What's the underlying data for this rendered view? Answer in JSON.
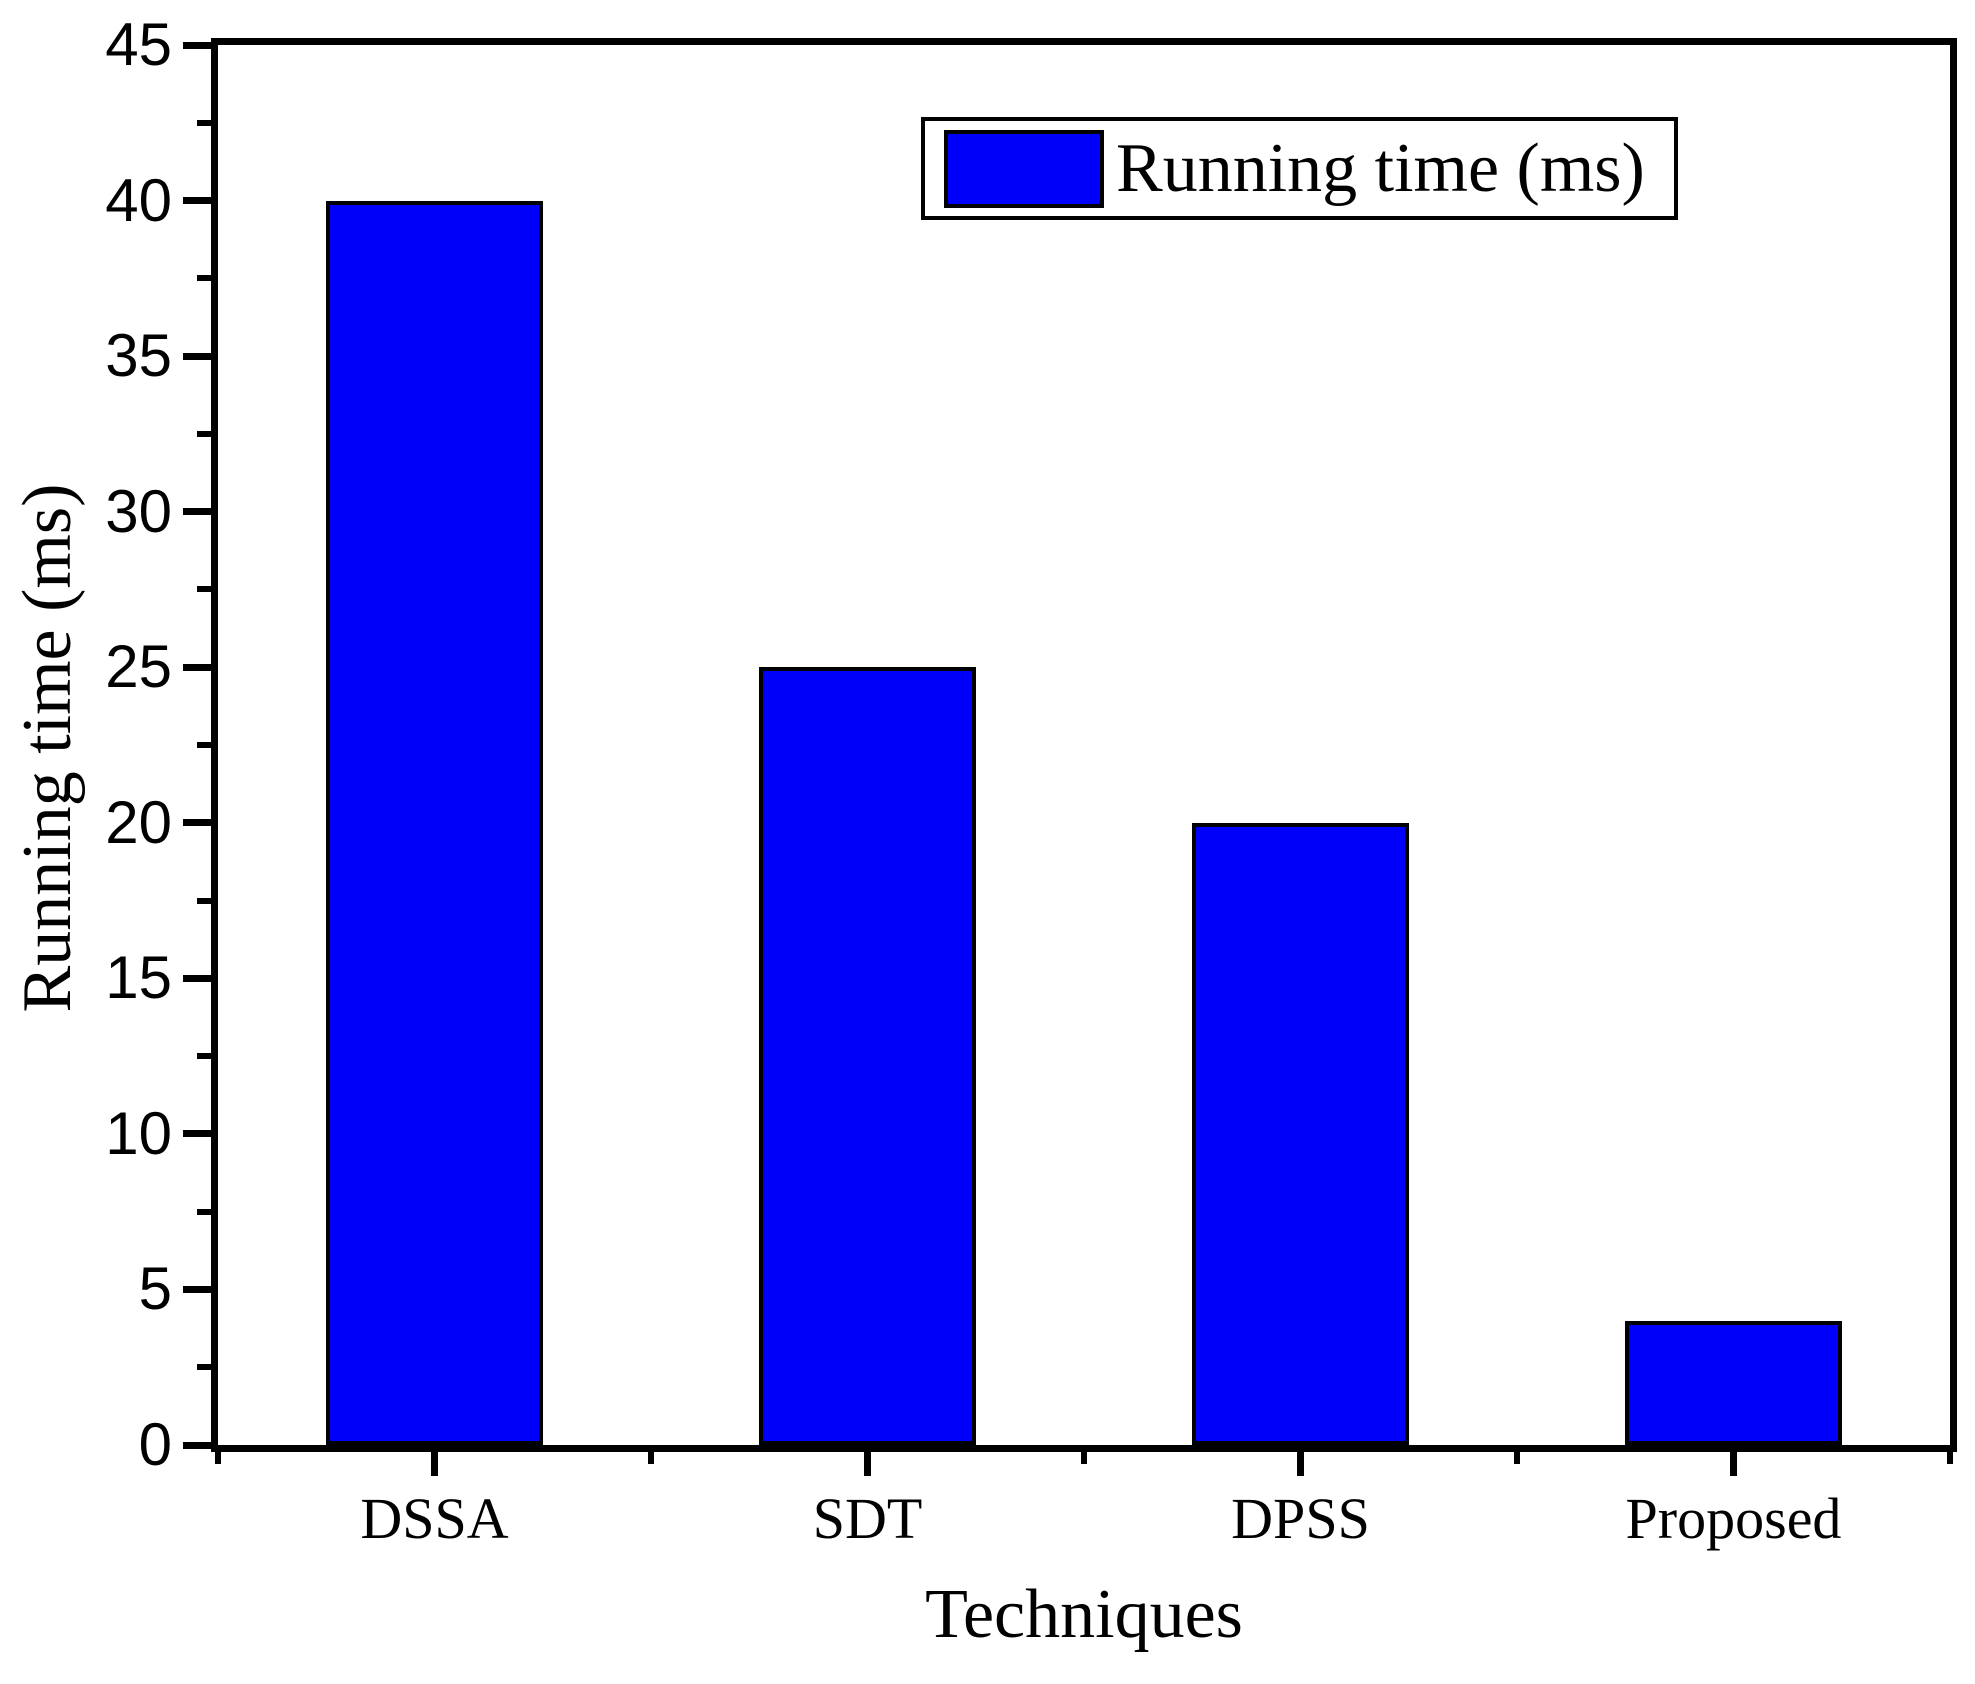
{
  "chart_data": {
    "type": "bar",
    "title": "",
    "categories": [
      "DSSA",
      "SDT",
      "DPSS",
      "Proposed"
    ],
    "values": [
      40,
      25,
      20,
      4
    ],
    "series": [
      {
        "name": "Running time (ms)",
        "values": [
          40,
          25,
          20,
          4
        ]
      }
    ],
    "xlabel": "Techniques",
    "ylabel": "Running time (ms)",
    "ylim": [
      0,
      45
    ],
    "y_major_step": 5,
    "y_minor_step": 2.5,
    "y_tick_labels": [
      "0",
      "5",
      "10",
      "15",
      "20",
      "25",
      "30",
      "35",
      "40",
      "45"
    ],
    "grid": false,
    "legend": {
      "label": "Running time (ms)",
      "position": "top-right"
    },
    "colors": {
      "bar_fill": "#0000fa",
      "bar_border": "#000000",
      "axis": "#000000",
      "background": "#ffffff",
      "text": "#000000"
    },
    "bar_width_fraction": 0.5
  }
}
